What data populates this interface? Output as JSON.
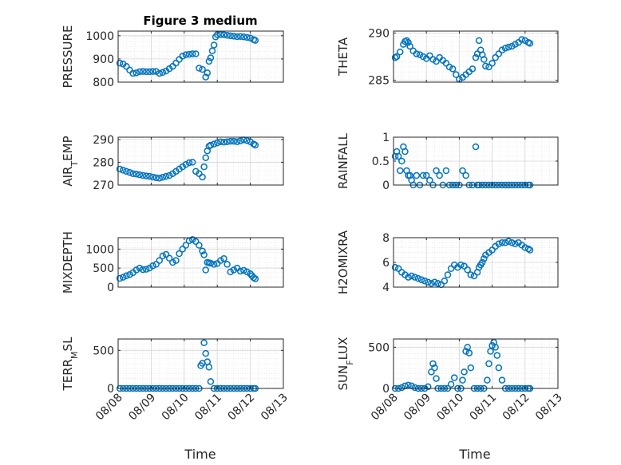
{
  "figure": {
    "title": "Figure 3 medium",
    "xlabel": "Time",
    "x_tick_labels": [
      "08/08",
      "08/09",
      "08/10",
      "08/11",
      "08/12",
      "08/13"
    ],
    "marker_color": "#0072BD"
  },
  "chart_data": [
    {
      "type": "scatter",
      "id": "pressure",
      "ylabel_parts": [
        "PRESSURE"
      ],
      "ylim": [
        800,
        1020
      ],
      "yticks": [
        800,
        900,
        1000
      ],
      "ytick_labels": [
        "800",
        "900",
        "1000"
      ],
      "xlim": [
        0,
        5
      ],
      "grid": true,
      "x": [
        0.05,
        0.15,
        0.25,
        0.35,
        0.45,
        0.55,
        0.65,
        0.75,
        0.85,
        0.95,
        1.05,
        1.15,
        1.25,
        1.35,
        1.45,
        1.55,
        1.65,
        1.75,
        1.85,
        1.95,
        2.05,
        2.15,
        2.25,
        2.35,
        2.45,
        2.55,
        2.65,
        2.7,
        2.75,
        2.8,
        2.85,
        2.9,
        2.95,
        3.0,
        3.1,
        3.2,
        3.3,
        3.4,
        3.5,
        3.6,
        3.7,
        3.8,
        3.9,
        4.0,
        4.1,
        4.15
      ],
      "y": [
        882,
        878,
        868,
        852,
        838,
        840,
        845,
        846,
        845,
        845,
        846,
        846,
        838,
        842,
        848,
        858,
        868,
        882,
        898,
        912,
        918,
        920,
        922,
        922,
        860,
        855,
        822,
        840,
        890,
        905,
        935,
        960,
        995,
        1005,
        1005,
        1004,
        1002,
        1000,
        998,
        996,
        997,
        995,
        993,
        990,
        983,
        980
      ]
    },
    {
      "type": "scatter",
      "id": "theta",
      "ylabel_parts": [
        "THETA"
      ],
      "ylim": [
        284.8,
        290.2
      ],
      "yticks": [
        285,
        290
      ],
      "ytick_labels": [
        "285",
        "290"
      ],
      "xlim": [
        0,
        5
      ],
      "grid": true,
      "x": [
        0.05,
        0.1,
        0.2,
        0.3,
        0.35,
        0.4,
        0.45,
        0.5,
        0.6,
        0.7,
        0.8,
        0.9,
        1.0,
        1.1,
        1.2,
        1.3,
        1.4,
        1.5,
        1.6,
        1.7,
        1.8,
        1.9,
        2.0,
        2.1,
        2.2,
        2.3,
        2.4,
        2.5,
        2.55,
        2.6,
        2.65,
        2.7,
        2.75,
        2.8,
        2.9,
        3.0,
        3.1,
        3.2,
        3.3,
        3.4,
        3.5,
        3.6,
        3.7,
        3.8,
        3.9,
        4.0,
        4.1,
        4.15
      ],
      "y": [
        287.4,
        287.5,
        288.0,
        288.8,
        289.1,
        289.2,
        289.0,
        288.6,
        288.1,
        287.8,
        287.7,
        287.5,
        287.3,
        287.6,
        287.2,
        287.0,
        287.4,
        287.1,
        286.8,
        286.4,
        286.2,
        285.6,
        285.1,
        285.3,
        285.6,
        285.9,
        286.2,
        287.4,
        287.8,
        289.2,
        288.2,
        287.7,
        287.2,
        286.5,
        286.4,
        286.8,
        287.4,
        287.8,
        288.2,
        288.4,
        288.5,
        288.6,
        288.8,
        289.0,
        289.3,
        289.2,
        289.0,
        288.9
      ]
    },
    {
      "type": "scatter",
      "id": "air_temp",
      "ylabel_parts": [
        "AIR",
        "T",
        "EMP"
      ],
      "ylim": [
        270,
        291
      ],
      "yticks": [
        270,
        280,
        290
      ],
      "ytick_labels": [
        "270",
        "280",
        "290"
      ],
      "xlim": [
        0,
        5
      ],
      "grid": true,
      "x": [
        0.05,
        0.15,
        0.25,
        0.35,
        0.45,
        0.55,
        0.65,
        0.75,
        0.85,
        0.95,
        1.05,
        1.15,
        1.25,
        1.35,
        1.45,
        1.55,
        1.65,
        1.75,
        1.85,
        1.95,
        2.05,
        2.15,
        2.25,
        2.35,
        2.45,
        2.55,
        2.6,
        2.65,
        2.7,
        2.75,
        2.8,
        2.9,
        3.0,
        3.1,
        3.2,
        3.3,
        3.4,
        3.5,
        3.6,
        3.7,
        3.8,
        3.9,
        4.0,
        4.1,
        4.15
      ],
      "y": [
        277,
        276.5,
        276,
        275.5,
        275,
        274.8,
        274.5,
        274.2,
        274,
        273.8,
        273.5,
        273.2,
        273.0,
        273.4,
        273.8,
        274.2,
        275,
        276,
        277,
        278,
        279,
        279.8,
        280,
        276,
        275,
        273.5,
        278,
        282,
        285,
        287,
        287.5,
        288,
        288.5,
        289,
        288.8,
        289,
        289.2,
        289.2,
        289,
        289.4,
        289.8,
        289.5,
        289,
        288,
        287.5
      ]
    },
    {
      "type": "scatter",
      "id": "rainfall",
      "ylabel_parts": [
        "RAINFALL"
      ],
      "ylim": [
        0,
        1
      ],
      "yticks": [
        0,
        0.5,
        1
      ],
      "ytick_labels": [
        "0",
        "0.5",
        "1"
      ],
      "xlim": [
        0,
        5
      ],
      "grid": true,
      "x": [
        0.05,
        0.1,
        0.15,
        0.2,
        0.25,
        0.3,
        0.35,
        0.4,
        0.45,
        0.5,
        0.55,
        0.6,
        0.7,
        0.8,
        0.9,
        1.0,
        1.1,
        1.2,
        1.3,
        1.4,
        1.5,
        1.6,
        1.7,
        1.8,
        1.9,
        2.0,
        2.1,
        2.2,
        2.3,
        2.4,
        2.5,
        2.55,
        2.6,
        2.7,
        2.8,
        2.9,
        3.0,
        3.1,
        3.2,
        3.3,
        3.4,
        3.5,
        3.6,
        3.7,
        3.8,
        3.9,
        4.0,
        4.1,
        4.15
      ],
      "y": [
        0.6,
        0.7,
        0.6,
        0.3,
        0.5,
        0.8,
        0.7,
        0.3,
        0.2,
        0.2,
        0.1,
        0.0,
        0.2,
        0.0,
        0.2,
        0.2,
        0.1,
        0.0,
        0.3,
        0.2,
        0.0,
        0.3,
        0.0,
        0.0,
        0.0,
        0.0,
        0.3,
        0.2,
        0.0,
        0.0,
        0.8,
        0.0,
        0.0,
        0.0,
        0.0,
        0.0,
        0.0,
        0.0,
        0.0,
        0.0,
        0.0,
        0.0,
        0.0,
        0.0,
        0.0,
        0.0,
        0.0,
        0.0,
        0.0
      ]
    },
    {
      "type": "scatter",
      "id": "mixdepth",
      "ylabel_parts": [
        "MIXDEPTH"
      ],
      "ylim": [
        0,
        1300
      ],
      "yticks": [
        0,
        500,
        1000
      ],
      "ytick_labels": [
        "0",
        "500",
        "1000"
      ],
      "xlim": [
        0,
        5
      ],
      "grid": true,
      "x": [
        0.05,
        0.15,
        0.25,
        0.35,
        0.45,
        0.55,
        0.65,
        0.75,
        0.85,
        0.95,
        1.05,
        1.15,
        1.25,
        1.35,
        1.45,
        1.55,
        1.65,
        1.75,
        1.85,
        1.95,
        2.05,
        2.15,
        2.25,
        2.35,
        2.45,
        2.55,
        2.6,
        2.65,
        2.7,
        2.75,
        2.8,
        2.9,
        3.0,
        3.1,
        3.2,
        3.3,
        3.4,
        3.5,
        3.6,
        3.7,
        3.8,
        3.9,
        4.0,
        4.05,
        4.1,
        4.15
      ],
      "y": [
        230,
        260,
        300,
        330,
        380,
        450,
        500,
        460,
        470,
        500,
        560,
        600,
        700,
        820,
        860,
        760,
        650,
        700,
        880,
        1000,
        1100,
        1220,
        1250,
        1200,
        1100,
        950,
        850,
        450,
        650,
        640,
        630,
        600,
        620,
        700,
        750,
        600,
        400,
        450,
        500,
        420,
        440,
        400,
        350,
        300,
        250,
        220
      ]
    },
    {
      "type": "scatter",
      "id": "h2omixra",
      "ylabel_parts": [
        "H2OMIXRA"
      ],
      "ylim": [
        4,
        8
      ],
      "yticks": [
        4,
        6,
        8
      ],
      "ytick_labels": [
        "4",
        "6",
        "8"
      ],
      "xlim": [
        0,
        5
      ],
      "grid": true,
      "x": [
        0.05,
        0.15,
        0.25,
        0.35,
        0.45,
        0.55,
        0.65,
        0.75,
        0.85,
        0.95,
        1.05,
        1.15,
        1.25,
        1.35,
        1.45,
        1.55,
        1.65,
        1.75,
        1.85,
        1.95,
        2.05,
        2.15,
        2.25,
        2.35,
        2.45,
        2.55,
        2.6,
        2.65,
        2.7,
        2.75,
        2.8,
        2.9,
        3.0,
        3.1,
        3.2,
        3.3,
        3.4,
        3.5,
        3.6,
        3.7,
        3.8,
        3.9,
        4.0,
        4.1,
        4.15
      ],
      "y": [
        5.6,
        5.5,
        5.2,
        5.0,
        4.8,
        4.9,
        4.8,
        4.7,
        4.6,
        4.5,
        4.4,
        4.3,
        4.4,
        4.3,
        4.2,
        4.5,
        5.0,
        5.5,
        5.8,
        5.6,
        5.8,
        5.7,
        5.4,
        5.0,
        4.9,
        5.2,
        5.6,
        5.8,
        6.0,
        6.3,
        6.6,
        6.8,
        7.0,
        7.3,
        7.5,
        7.6,
        7.6,
        7.7,
        7.6,
        7.5,
        7.6,
        7.4,
        7.2,
        7.1,
        7.0
      ]
    },
    {
      "type": "scatter",
      "id": "terr_msl",
      "ylabel_parts": [
        "TERR",
        "M",
        "SL"
      ],
      "ylim": [
        0,
        650
      ],
      "yticks": [
        0,
        500
      ],
      "ytick_labels": [
        "0",
        "500"
      ],
      "xlim": [
        0,
        5
      ],
      "grid": true,
      "x": [
        0.05,
        0.15,
        0.25,
        0.35,
        0.45,
        0.55,
        0.65,
        0.75,
        0.85,
        0.95,
        1.05,
        1.15,
        1.25,
        1.35,
        1.45,
        1.55,
        1.65,
        1.75,
        1.85,
        1.95,
        2.05,
        2.15,
        2.25,
        2.35,
        2.45,
        2.5,
        2.55,
        2.6,
        2.65,
        2.7,
        2.75,
        2.8,
        2.9,
        3.0,
        3.1,
        3.2,
        3.3,
        3.4,
        3.5,
        3.6,
        3.7,
        3.8,
        3.9,
        4.0,
        4.1,
        4.15
      ],
      "y": [
        0,
        0,
        0,
        0,
        0,
        0,
        0,
        0,
        0,
        0,
        0,
        0,
        0,
        0,
        0,
        0,
        0,
        0,
        0,
        0,
        0,
        0,
        0,
        0,
        0,
        300,
        330,
        600,
        460,
        350,
        280,
        90,
        0,
        0,
        0,
        0,
        0,
        0,
        0,
        0,
        0,
        0,
        0,
        0,
        0,
        0
      ]
    },
    {
      "type": "scatter",
      "id": "sun_flux",
      "ylabel_parts": [
        "SUN",
        "F",
        "LUX"
      ],
      "ylim": [
        0,
        600
      ],
      "yticks": [
        0,
        500
      ],
      "ytick_labels": [
        "0",
        "500"
      ],
      "xlim": [
        0,
        5
      ],
      "grid": true,
      "x": [
        0.05,
        0.15,
        0.25,
        0.35,
        0.45,
        0.55,
        0.65,
        0.75,
        0.85,
        0.95,
        1.05,
        1.15,
        1.2,
        1.25,
        1.3,
        1.35,
        1.45,
        1.55,
        1.65,
        1.75,
        1.85,
        1.95,
        2.05,
        2.1,
        2.15,
        2.2,
        2.25,
        2.3,
        2.35,
        2.45,
        2.55,
        2.65,
        2.75,
        2.85,
        2.9,
        2.95,
        3.0,
        3.05,
        3.1,
        3.15,
        3.2,
        3.3,
        3.4,
        3.5,
        3.6,
        3.7,
        3.8,
        3.9,
        4.0,
        4.1,
        4.15
      ],
      "y": [
        0,
        0,
        10,
        30,
        40,
        30,
        10,
        0,
        0,
        0,
        20,
        200,
        300,
        250,
        120,
        0,
        0,
        0,
        0,
        50,
        130,
        0,
        0,
        100,
        200,
        450,
        500,
        430,
        250,
        0,
        0,
        0,
        0,
        100,
        300,
        450,
        520,
        560,
        500,
        400,
        250,
        100,
        0,
        0,
        0,
        0,
        0,
        0,
        0,
        0,
        0
      ]
    }
  ]
}
